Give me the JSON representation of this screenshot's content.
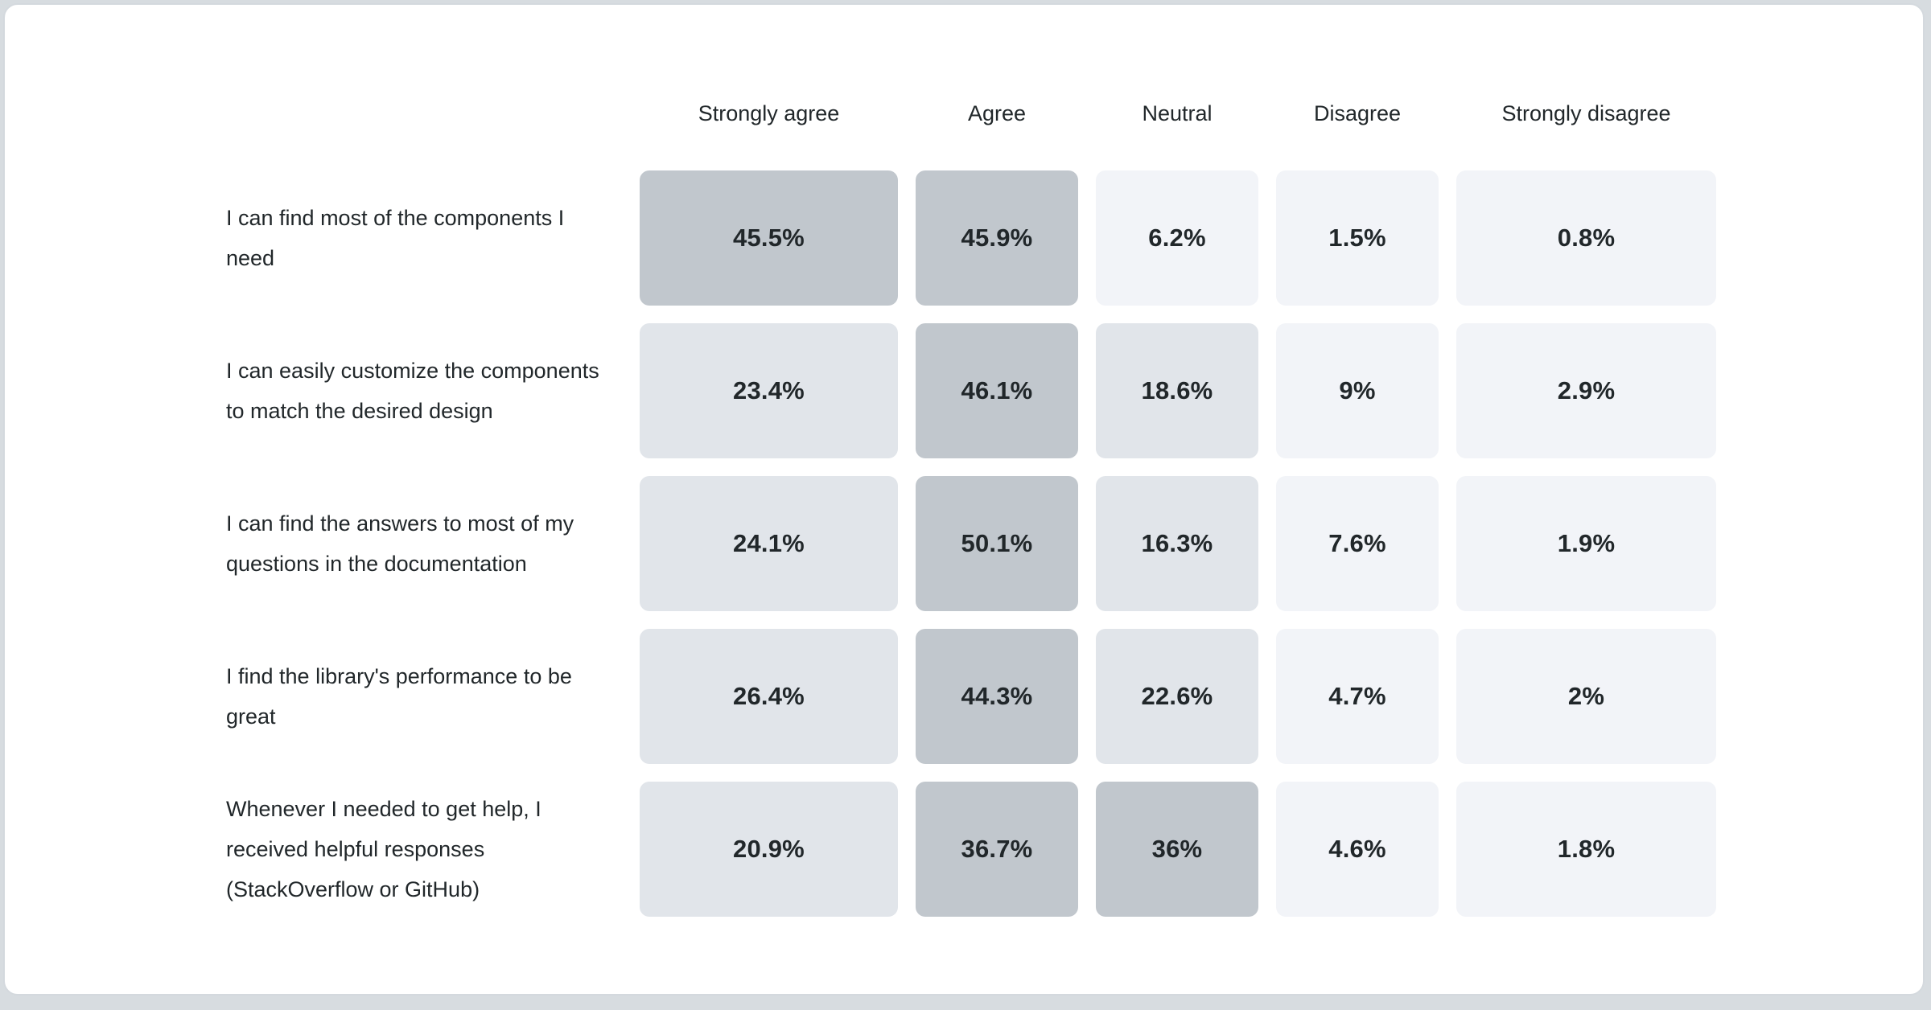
{
  "chart_data": {
    "type": "heatmap",
    "title": "",
    "columns": [
      "Strongly agree",
      "Agree",
      "Neutral",
      "Disagree",
      "Strongly disagree"
    ],
    "rows": [
      {
        "label": "I can find most of the components I need",
        "cells": [
          {
            "display": "45.5%",
            "value": 45.5
          },
          {
            "display": "45.9%",
            "value": 45.9
          },
          {
            "display": "6.2%",
            "value": 6.2
          },
          {
            "display": "1.5%",
            "value": 1.5
          },
          {
            "display": "0.8%",
            "value": 0.8
          }
        ]
      },
      {
        "label": "I can easily customize the components to match the desired design",
        "cells": [
          {
            "display": "23.4%",
            "value": 23.4
          },
          {
            "display": "46.1%",
            "value": 46.1
          },
          {
            "display": "18.6%",
            "value": 18.6
          },
          {
            "display": "9%",
            "value": 9
          },
          {
            "display": "2.9%",
            "value": 2.9
          }
        ]
      },
      {
        "label": "I can find the answers to most of my questions in the documentation",
        "cells": [
          {
            "display": "24.1%",
            "value": 24.1
          },
          {
            "display": "50.1%",
            "value": 50.1
          },
          {
            "display": "16.3%",
            "value": 16.3
          },
          {
            "display": "7.6%",
            "value": 7.6
          },
          {
            "display": "1.9%",
            "value": 1.9
          }
        ]
      },
      {
        "label": "I find the library's performance to be great",
        "cells": [
          {
            "display": "26.4%",
            "value": 26.4
          },
          {
            "display": "44.3%",
            "value": 44.3
          },
          {
            "display": "22.6%",
            "value": 22.6
          },
          {
            "display": "4.7%",
            "value": 4.7
          },
          {
            "display": "2%",
            "value": 2
          }
        ]
      },
      {
        "label": "Whenever I needed to get help, I received helpful responses (StackOverflow or GitHub)",
        "cells": [
          {
            "display": "20.9%",
            "value": 20.9
          },
          {
            "display": "36.7%",
            "value": 36.7
          },
          {
            "display": "36%",
            "value": 36
          },
          {
            "display": "4.6%",
            "value": 4.6
          },
          {
            "display": "1.8%",
            "value": 1.8
          }
        ]
      }
    ],
    "legend_position": "none",
    "grid": false,
    "tone_colors": {
      "high": "#c1c7cd",
      "mid": "#e1e5ea",
      "low": "#f2f4f8"
    },
    "tone_thresholds": {
      "high_min": 30,
      "mid_min": 10
    },
    "colors": {
      "card_background": "#ffffff",
      "page_background": "#d7dce0",
      "card_border": "#d4d9de",
      "text": "#21272a"
    }
  }
}
